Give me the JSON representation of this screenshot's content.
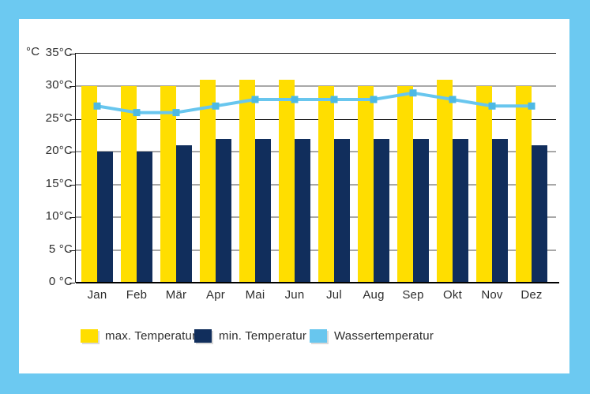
{
  "colors": {
    "background": "#6CC9F1",
    "card": "#FFFFFF",
    "gridline": "#A8A8A8",
    "reference_line": "#000000",
    "axis": "#1A1A1A",
    "text": "#2D2D2D",
    "max_bar": "#FFDE00",
    "min_bar": "#112E5C",
    "water_line": "#68C6EE",
    "water_marker": "#4EB9E4"
  },
  "chart_data": {
    "type": "bar",
    "title": "",
    "categories": [
      "Jan",
      "Feb",
      "Mär",
      "Apr",
      "Mai",
      "Jun",
      "Jul",
      "Aug",
      "Sep",
      "Okt",
      "Nov",
      "Dez"
    ],
    "series": [
      {
        "name": "max. Temperatur",
        "type": "bar",
        "color": "#FFDE00",
        "values": [
          30,
          30,
          30,
          31,
          31,
          31,
          30,
          30,
          30,
          31,
          30,
          30
        ]
      },
      {
        "name": "min. Temperatur",
        "type": "bar",
        "color": "#112E5C",
        "values": [
          20,
          20,
          21,
          22,
          22,
          22,
          22,
          22,
          22,
          22,
          22,
          21
        ]
      },
      {
        "name": "Wassertemperatur",
        "type": "line",
        "color": "#68C6EE",
        "marker_color": "#4EB9E4",
        "marker_shape": "square",
        "values": [
          27,
          26,
          26,
          27,
          28,
          28,
          28,
          28,
          29,
          28,
          27,
          27
        ]
      }
    ],
    "xlabel": "",
    "ylabel": "°C",
    "y_axis": {
      "min": 0,
      "max": 35,
      "step": 5,
      "unit_label": "°C",
      "labels": [
        "35°C",
        "30°C",
        "25°C",
        "20°C",
        "15°C",
        "10°C",
        "5 °C",
        "0 °C"
      ],
      "reference_line": 25
    },
    "ylim": [
      0,
      35
    ],
    "grid": true,
    "legend_position": "bottom"
  }
}
